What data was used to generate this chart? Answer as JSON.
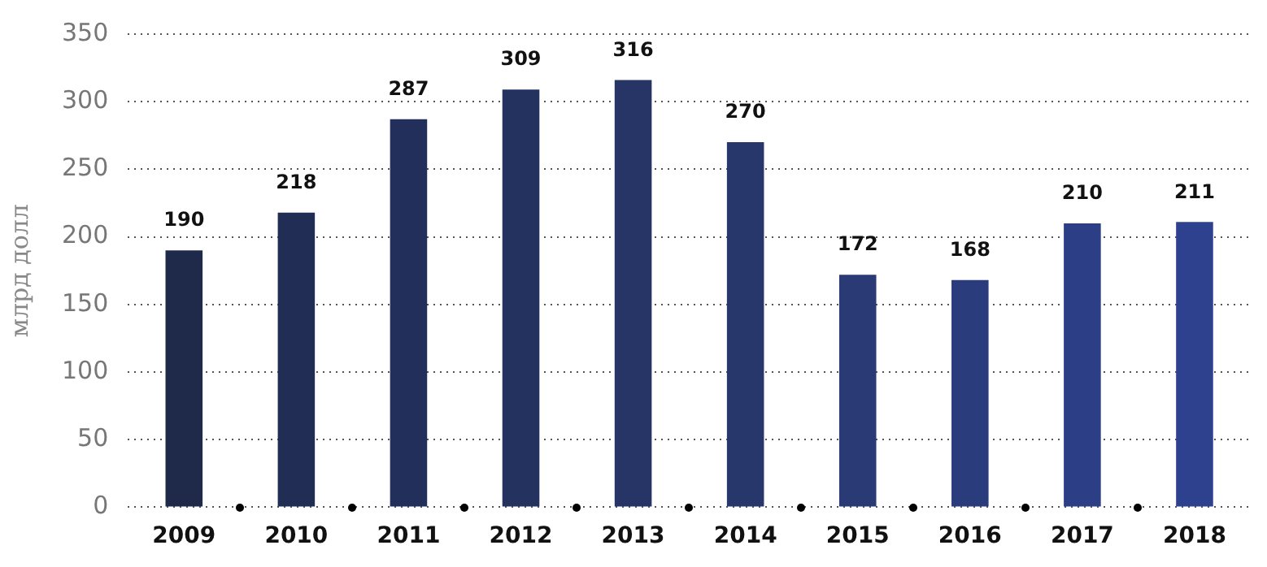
{
  "chart_data": {
    "type": "bar",
    "ylabel": "млрд долл",
    "categories": [
      "2009",
      "2010",
      "2011",
      "2012",
      "2013",
      "2014",
      "2015",
      "2016",
      "2017",
      "2018"
    ],
    "values": [
      190,
      218,
      287,
      309,
      316,
      270,
      172,
      168,
      210,
      211
    ],
    "colors": [
      "#1f2a4b",
      "#212d54",
      "#222f5a",
      "#24325f",
      "#263565",
      "#27376b",
      "#293a74",
      "#2a3c7b",
      "#2c3f86",
      "#2e418f"
    ],
    "ylim": [
      0,
      350
    ],
    "yticks": [
      0,
      50,
      100,
      150,
      200,
      250,
      300,
      350
    ],
    "grid": "y",
    "data_labels": true,
    "legend": false
  }
}
